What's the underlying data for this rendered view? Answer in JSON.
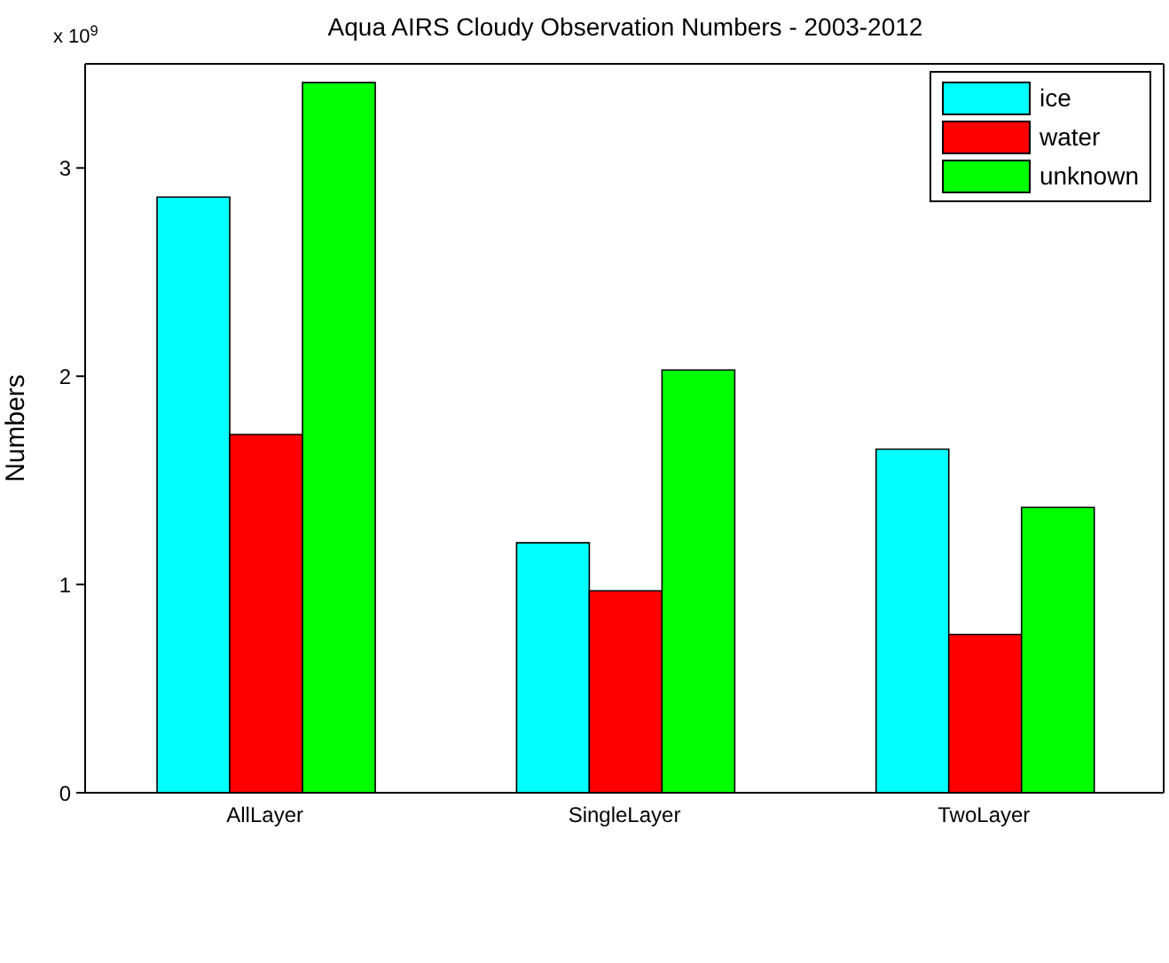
{
  "chart_data": {
    "type": "bar",
    "title": "Aqua AIRS  Cloudy Observation Numbers - 2003-2012",
    "ylabel": "Numbers",
    "annotations": [
      "x 10$^{9}$"
    ],
    "categories": [
      "AllLayer",
      "SingleLayer",
      "TwoLayer"
    ],
    "series": [
      {
        "name": "ice",
        "color": "#00ffff",
        "values": [
          2.86,
          1.2,
          1.65
        ]
      },
      {
        "name": "water",
        "color": "#ff0000",
        "values": [
          1.72,
          0.97,
          0.76
        ]
      },
      {
        "name": "unknown",
        "color": "#00ff00",
        "values": [
          3.41,
          2.03,
          1.37
        ]
      }
    ],
    "ylim": [
      0,
      3.5
    ],
    "yticks": [
      0,
      1,
      2,
      3
    ],
    "legend": "top right"
  }
}
